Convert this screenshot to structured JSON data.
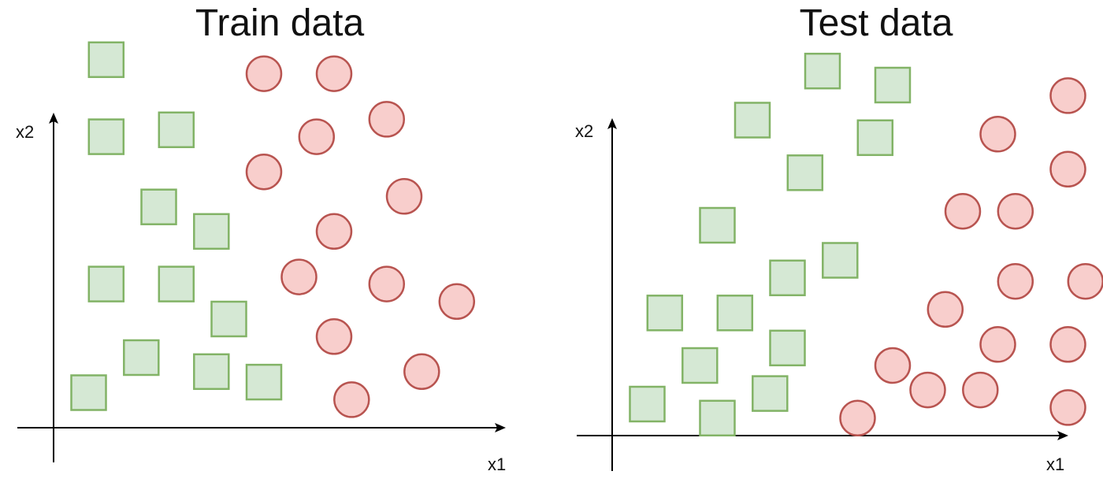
{
  "colors": {
    "square_fill": "#d5e8d4",
    "square_stroke": "#82b366",
    "circle_fill": "#f8cecc",
    "circle_stroke": "#b85450",
    "axis": "#000000"
  },
  "panels": [
    {
      "id": "train",
      "title": "Train data",
      "x_label": "x1",
      "y_label": "x2",
      "squares": [
        [
          1.5,
          10.5
        ],
        [
          1.5,
          8.3
        ],
        [
          3.5,
          8.5
        ],
        [
          3.0,
          6.3
        ],
        [
          4.5,
          5.6
        ],
        [
          1.5,
          4.1
        ],
        [
          3.5,
          4.1
        ],
        [
          5.0,
          3.1
        ],
        [
          2.5,
          2.0
        ],
        [
          4.5,
          1.6
        ],
        [
          6.0,
          1.3
        ],
        [
          1.0,
          1.0
        ]
      ],
      "circles": [
        [
          6.0,
          10.1
        ],
        [
          8.0,
          10.1
        ],
        [
          9.5,
          8.8
        ],
        [
          7.5,
          8.3
        ],
        [
          6.0,
          7.3
        ],
        [
          10.0,
          6.6
        ],
        [
          8.0,
          5.6
        ],
        [
          7.0,
          4.3
        ],
        [
          9.5,
          4.1
        ],
        [
          11.5,
          3.6
        ],
        [
          8.0,
          2.6
        ],
        [
          10.5,
          1.6
        ],
        [
          8.5,
          0.8
        ]
      ]
    },
    {
      "id": "test",
      "title": "Test data",
      "x_label": "x1",
      "y_label": "x2",
      "squares": [
        [
          6.0,
          10.4
        ],
        [
          8.0,
          10.0
        ],
        [
          4.0,
          9.0
        ],
        [
          7.5,
          8.5
        ],
        [
          5.5,
          7.5
        ],
        [
          3.0,
          6.0
        ],
        [
          6.5,
          5.0
        ],
        [
          5.0,
          4.5
        ],
        [
          1.5,
          3.5
        ],
        [
          3.5,
          3.5
        ],
        [
          5.0,
          2.5
        ],
        [
          2.5,
          2.0
        ],
        [
          4.5,
          1.2
        ],
        [
          1.0,
          0.9
        ],
        [
          3.0,
          0.5
        ]
      ],
      "circles": [
        [
          13.0,
          9.7
        ],
        [
          11.0,
          8.6
        ],
        [
          13.0,
          7.6
        ],
        [
          10.0,
          6.4
        ],
        [
          11.5,
          6.4
        ],
        [
          11.5,
          4.4
        ],
        [
          13.5,
          4.4
        ],
        [
          9.5,
          3.6
        ],
        [
          11.0,
          2.6
        ],
        [
          13.0,
          2.6
        ],
        [
          8.0,
          2.0
        ],
        [
          9.0,
          1.3
        ],
        [
          10.5,
          1.3
        ],
        [
          13.0,
          0.8
        ],
        [
          7.0,
          0.5
        ]
      ]
    }
  ]
}
